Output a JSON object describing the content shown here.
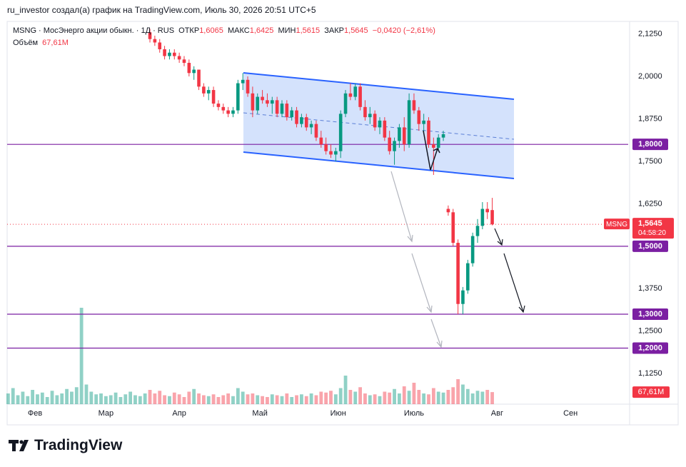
{
  "header": {
    "text": "ru_investor создал(а) график на TradingView.com, Июль 30, 2026 20:51 UTC+5"
  },
  "footer": {
    "logo": "TradingView"
  },
  "legend": {
    "symbol": "MSNG · МосЭнерго акции обыкн. · 1Д · RUS",
    "open_label": "ОТКР",
    "open": "1,6065",
    "high_label": "МАКС",
    "high": "1,6425",
    "low_label": "МИН",
    "low": "1,5615",
    "close_label": "ЗАКР",
    "close": "1,5645",
    "change": "−0,0420 (−2,61%)",
    "volume_label": "Объём",
    "volume": "67,61M"
  },
  "chart_data": {
    "type": "candlestick",
    "up_color": "#089981",
    "down_color": "#f23645",
    "level_color": "#7b1fa2",
    "grid": false,
    "x": [
      -29,
      -28,
      -27,
      -26,
      -25,
      -24,
      -23,
      -22,
      -21,
      -20,
      -19,
      -18,
      -17,
      -16,
      -15,
      -14,
      -13,
      -12,
      -11,
      -10,
      -9,
      -8,
      -7,
      -6,
      -5,
      -4,
      -3,
      -2,
      -1,
      0,
      1,
      2,
      3,
      4,
      5,
      6,
      7,
      8,
      9,
      10,
      11,
      12,
      13,
      14,
      15,
      16,
      17,
      18,
      19,
      20,
      21,
      22,
      23,
      24,
      25,
      26,
      27,
      28,
      29,
      30,
      31,
      32,
      33,
      34,
      35,
      36,
      37,
      38,
      39,
      40,
      41,
      42,
      43,
      44,
      45,
      46,
      47,
      48,
      49,
      50,
      51,
      52,
      53,
      54,
      55,
      56,
      57,
      58,
      59,
      60,
      61,
      62,
      63,
      64,
      65,
      66,
      67,
      68,
      69,
      70
    ],
    "open": [
      null,
      null,
      null,
      null,
      null,
      null,
      null,
      null,
      null,
      null,
      null,
      null,
      null,
      null,
      null,
      null,
      null,
      null,
      null,
      null,
      null,
      null,
      null,
      null,
      null,
      null,
      null,
      null,
      null,
      2.13,
      2.11,
      2.1,
      2.08,
      2.06,
      2.07,
      2.06,
      2.05,
      2.04,
      2.01,
      2.02,
      1.97,
      1.95,
      1.96,
      1.92,
      1.91,
      1.9,
      1.89,
      1.9,
      1.98,
      1.99,
      1.95,
      1.9,
      1.94,
      1.93,
      1.92,
      1.93,
      1.89,
      1.92,
      1.88,
      1.9,
      1.86,
      1.88,
      1.85,
      1.86,
      1.82,
      1.8,
      1.78,
      1.77,
      1.78,
      1.89,
      1.95,
      1.94,
      1.97,
      1.91,
      1.88,
      1.89,
      1.85,
      1.87,
      1.82,
      1.78,
      1.81,
      1.85,
      1.8,
      1.93,
      1.9,
      1.86,
      1.87,
      1.8,
      1.79,
      1.82,
      1.61,
      1.6,
      1.51,
      1.33,
      1.37,
      1.45,
      1.53,
      1.56,
      1.61,
      1.6065
    ],
    "high": [
      null,
      null,
      null,
      null,
      null,
      null,
      null,
      null,
      null,
      null,
      null,
      null,
      null,
      null,
      null,
      null,
      null,
      null,
      null,
      null,
      null,
      null,
      null,
      null,
      null,
      null,
      null,
      null,
      null,
      2.14,
      2.12,
      2.11,
      2.09,
      2.08,
      2.08,
      2.07,
      2.06,
      2.05,
      2.03,
      2.02,
      1.98,
      1.97,
      1.97,
      1.93,
      1.92,
      1.91,
      1.91,
      1.99,
      2.01,
      2.0,
      1.97,
      1.95,
      1.96,
      1.95,
      1.94,
      1.94,
      1.93,
      1.93,
      1.91,
      1.91,
      1.89,
      1.89,
      1.87,
      1.87,
      1.84,
      1.82,
      1.8,
      1.79,
      1.9,
      1.96,
      1.98,
      1.98,
      1.98,
      1.93,
      1.91,
      1.9,
      1.88,
      1.88,
      1.84,
      1.82,
      1.86,
      1.88,
      1.95,
      1.95,
      1.91,
      1.89,
      1.88,
      1.82,
      1.83,
      1.84,
      1.62,
      1.61,
      1.52,
      1.38,
      1.46,
      1.54,
      1.58,
      1.63,
      1.63,
      1.6425
    ],
    "low": [
      null,
      null,
      null,
      null,
      null,
      null,
      null,
      null,
      null,
      null,
      null,
      null,
      null,
      null,
      null,
      null,
      null,
      null,
      null,
      null,
      null,
      null,
      null,
      null,
      null,
      null,
      null,
      null,
      null,
      2.1,
      2.09,
      2.07,
      2.05,
      2.05,
      2.05,
      2.04,
      2.03,
      2.0,
      1.99,
      1.96,
      1.94,
      1.93,
      1.91,
      1.9,
      1.89,
      1.88,
      1.88,
      1.89,
      1.96,
      1.94,
      1.88,
      1.89,
      1.92,
      1.91,
      1.89,
      1.88,
      1.88,
      1.87,
      1.87,
      1.85,
      1.85,
      1.84,
      1.83,
      1.81,
      1.79,
      1.77,
      1.76,
      1.75,
      1.76,
      1.88,
      1.93,
      1.93,
      1.9,
      1.87,
      1.86,
      1.84,
      1.83,
      1.81,
      1.77,
      1.74,
      1.79,
      1.78,
      1.79,
      1.89,
      1.84,
      1.83,
      1.79,
      1.71,
      1.78,
      1.81,
      1.59,
      1.5,
      1.3,
      1.3,
      1.36,
      1.44,
      1.51,
      1.55,
      1.58,
      1.5615
    ],
    "close": [
      null,
      null,
      null,
      null,
      null,
      null,
      null,
      null,
      null,
      null,
      null,
      null,
      null,
      null,
      null,
      null,
      null,
      null,
      null,
      null,
      null,
      null,
      null,
      null,
      null,
      null,
      null,
      null,
      null,
      2.11,
      2.1,
      2.08,
      2.06,
      2.07,
      2.06,
      2.05,
      2.04,
      2.01,
      2.02,
      1.97,
      1.95,
      1.96,
      1.92,
      1.91,
      1.9,
      1.89,
      1.9,
      1.98,
      1.99,
      1.95,
      1.9,
      1.94,
      1.93,
      1.92,
      1.93,
      1.89,
      1.92,
      1.88,
      1.9,
      1.86,
      1.88,
      1.85,
      1.86,
      1.82,
      1.8,
      1.78,
      1.77,
      1.78,
      1.89,
      1.95,
      1.94,
      1.97,
      1.91,
      1.88,
      1.89,
      1.85,
      1.87,
      1.82,
      1.78,
      1.81,
      1.85,
      1.8,
      1.93,
      1.9,
      1.86,
      1.87,
      1.8,
      1.79,
      1.82,
      1.83,
      1.6,
      1.51,
      1.33,
      1.37,
      1.45,
      1.53,
      1.56,
      1.61,
      1.6,
      1.5645
    ],
    "volume": {
      "values": [
        60,
        90,
        50,
        70,
        45,
        80,
        55,
        65,
        40,
        75,
        50,
        60,
        85,
        70,
        95,
        540,
        110,
        70,
        55,
        60,
        45,
        50,
        65,
        40,
        55,
        70,
        50,
        45,
        60,
        80,
        60,
        75,
        50,
        45,
        65,
        55,
        40,
        70,
        85,
        60,
        50,
        45,
        55,
        40,
        50,
        60,
        45,
        90,
        70,
        55,
        60,
        50,
        45,
        40,
        55,
        50,
        45,
        60,
        40,
        50,
        55,
        45,
        60,
        50,
        70,
        65,
        75,
        55,
        90,
        160,
        80,
        70,
        95,
        60,
        50,
        55,
        45,
        70,
        65,
        85,
        60,
        100,
        75,
        120,
        80,
        60,
        55,
        90,
        70,
        65,
        80,
        95,
        140,
        110,
        85,
        60,
        75,
        70,
        80,
        67.61
      ],
      "last_label": "67,61M",
      "ylim": [
        0,
        600
      ]
    },
    "xlim": [
      -29.2,
      97.8
    ],
    "xticks": [
      {
        "value": -23.5,
        "label": "Фев"
      },
      {
        "value": -9,
        "label": "Мар"
      },
      {
        "value": 6,
        "label": "Апр"
      },
      {
        "value": 22.5,
        "label": "Май"
      },
      {
        "value": 38.5,
        "label": "Июн"
      },
      {
        "value": 54,
        "label": "Июль"
      },
      {
        "value": 71,
        "label": "Авг"
      },
      {
        "value": 86,
        "label": "Сен"
      }
    ],
    "ylim": [
      1.035,
      2.162
    ],
    "yticks": [
      {
        "value": 2.125,
        "label": "2,1250"
      },
      {
        "value": 2.0,
        "label": "2,0000"
      },
      {
        "value": 1.875,
        "label": "1,8750"
      },
      {
        "value": 1.75,
        "label": "1,7500"
      },
      {
        "value": 1.625,
        "label": "1,6250"
      },
      {
        "value": 1.5,
        "label": "1,5000"
      },
      {
        "value": 1.375,
        "label": "1,3750"
      },
      {
        "value": 1.25,
        "label": "1,2500"
      },
      {
        "value": 1.125,
        "label": "1,1250"
      }
    ],
    "levels": [
      {
        "value": 1.8,
        "label": "1,8000"
      },
      {
        "value": 1.5,
        "label": "1,5000"
      },
      {
        "value": 1.3,
        "label": "1,3000"
      },
      {
        "value": 1.2,
        "label": "1,2000"
      }
    ],
    "last_price": {
      "value": 1.5645,
      "label": "1,5645",
      "symbol": "MSNG",
      "countdown": "04:58:20"
    }
  }
}
